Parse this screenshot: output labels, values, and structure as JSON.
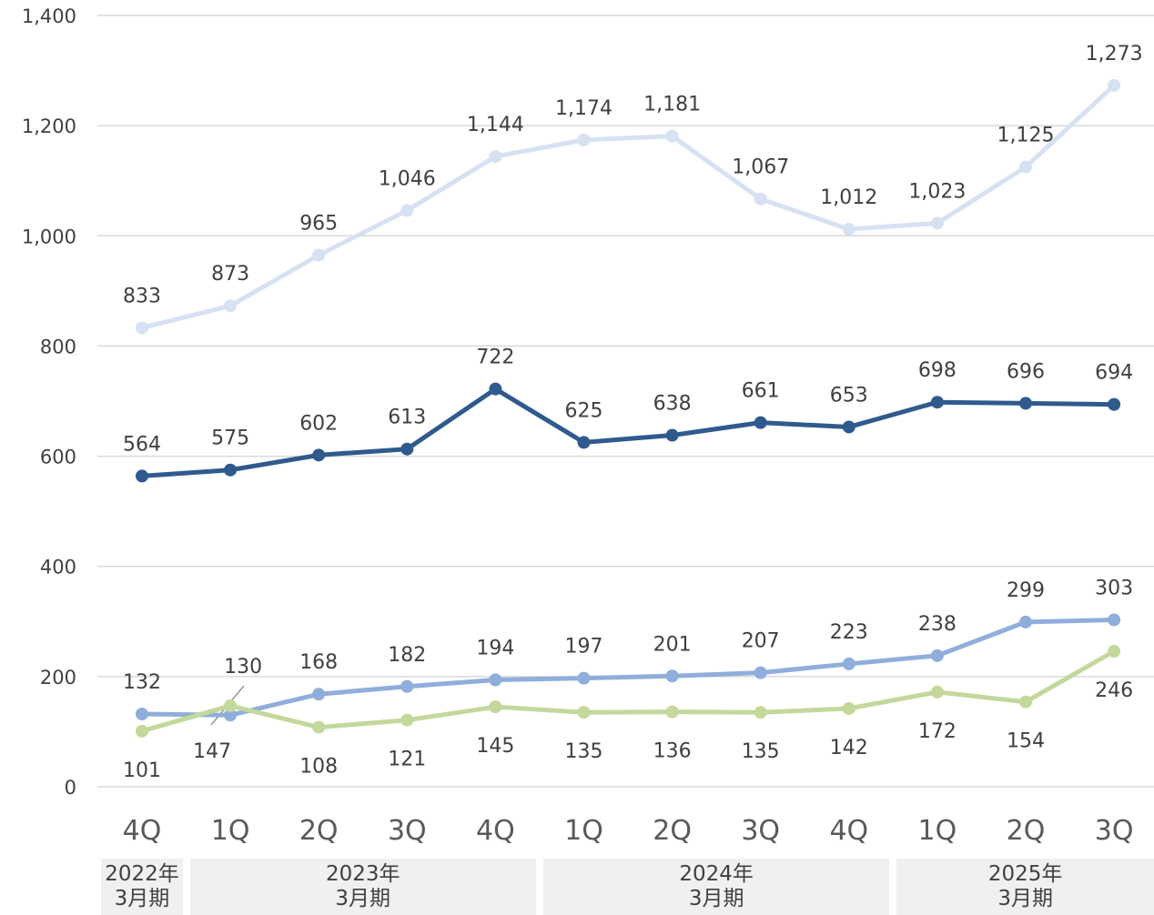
{
  "chart_data": {
    "type": "line",
    "categories": [
      "4Q",
      "1Q",
      "2Q",
      "3Q",
      "4Q",
      "1Q",
      "2Q",
      "3Q",
      "4Q",
      "1Q",
      "2Q",
      "3Q"
    ],
    "yticks": [
      "0",
      "200",
      "400",
      "600",
      "800",
      "1,000",
      "1,200",
      "1,400"
    ],
    "ylim": [
      0,
      1400
    ],
    "grid": true,
    "groups": [
      {
        "year": "2022年",
        "period": "3月期",
        "span": [
          0,
          0
        ]
      },
      {
        "year": "2023年",
        "period": "3月期",
        "span": [
          1,
          4
        ]
      },
      {
        "year": "2024年",
        "period": "3月期",
        "span": [
          5,
          8
        ]
      },
      {
        "year": "2025年",
        "period": "3月期",
        "span": [
          9,
          11
        ]
      }
    ],
    "series": [
      {
        "color": "#d6e1f2",
        "values": [
          833,
          873,
          965,
          1046,
          1144,
          1174,
          1181,
          1067,
          1012,
          1023,
          1125,
          1273
        ],
        "labels": [
          "833",
          "873",
          "965",
          "1,046",
          "1,144",
          "1,174",
          "1,181",
          "1,067",
          "1,012",
          "1,023",
          "1,125",
          "1,273"
        ],
        "label_pos": "above"
      },
      {
        "color": "#2f5a8e",
        "values": [
          564,
          575,
          602,
          613,
          722,
          625,
          638,
          661,
          653,
          698,
          696,
          694
        ],
        "labels": [
          "564",
          "575",
          "602",
          "613",
          "722",
          "625",
          "638",
          "661",
          "653",
          "698",
          "696",
          "694"
        ],
        "label_pos": "above"
      },
      {
        "color": "#8faedb",
        "values": [
          132,
          130,
          168,
          182,
          194,
          197,
          201,
          207,
          223,
          238,
          299,
          303
        ],
        "labels": [
          "132",
          "130",
          "168",
          "182",
          "194",
          "197",
          "201",
          "207",
          "223",
          "238",
          "299",
          "303"
        ],
        "label_pos": "above"
      },
      {
        "color": "#c3d89b",
        "values": [
          101,
          147,
          108,
          121,
          145,
          135,
          136,
          135,
          142,
          172,
          154,
          246
        ],
        "labels": [
          "101",
          "147",
          "108",
          "121",
          "145",
          "135",
          "136",
          "135",
          "142",
          "172",
          "154",
          "246"
        ],
        "label_pos": "below"
      }
    ]
  }
}
